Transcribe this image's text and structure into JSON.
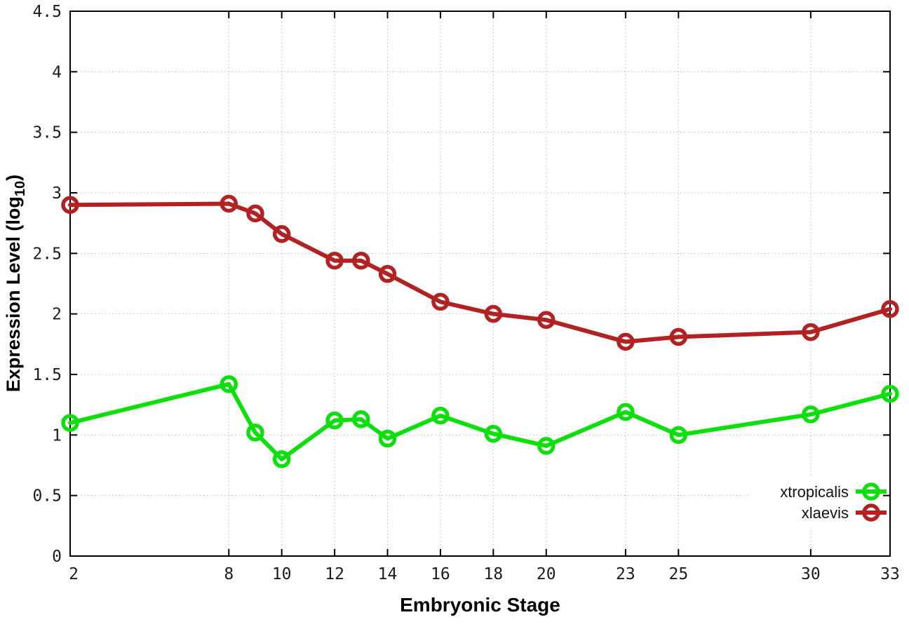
{
  "figure": {
    "background": "#ffffff"
  },
  "chart_data": {
    "type": "line",
    "title": "",
    "xlabel": "Embryonic Stage",
    "ylabel": "Expression Level (log10)",
    "ylabel_parts": {
      "base": "Expression Level (log",
      "subscript": "10",
      "suffix": ")"
    },
    "x": [
      2,
      8,
      9,
      10,
      12,
      13,
      14,
      16,
      18,
      20,
      23,
      25,
      30,
      33
    ],
    "series": [
      {
        "name": "xtropicalis",
        "color": "#0cdf0c",
        "marker": "open-circle",
        "values": [
          1.1,
          1.42,
          1.02,
          0.8,
          1.12,
          1.13,
          0.97,
          1.16,
          1.01,
          0.91,
          1.19,
          1.0,
          1.17,
          1.34
        ]
      },
      {
        "name": "xlaevis",
        "color": "#b22222",
        "marker": "open-circle",
        "values": [
          2.9,
          2.91,
          2.83,
          2.66,
          2.44,
          2.44,
          2.33,
          2.1,
          2.0,
          1.95,
          1.77,
          1.81,
          1.85,
          2.04
        ]
      }
    ],
    "xlim": [
      2,
      33
    ],
    "ylim": [
      0,
      4.5
    ],
    "xticks": [
      2,
      8,
      10,
      12,
      14,
      16,
      18,
      20,
      23,
      25,
      30,
      33
    ],
    "yticks": [
      0,
      0.5,
      1,
      1.5,
      2,
      2.5,
      3,
      3.5,
      4,
      4.5
    ],
    "grid": true,
    "legend": {
      "position": "bottom-right",
      "entries": [
        "xtropicalis",
        "xlaevis"
      ]
    },
    "colors": {
      "grid": "#b8b8b8",
      "axis": "#000000",
      "tick_text": "#1c1c1c"
    }
  }
}
